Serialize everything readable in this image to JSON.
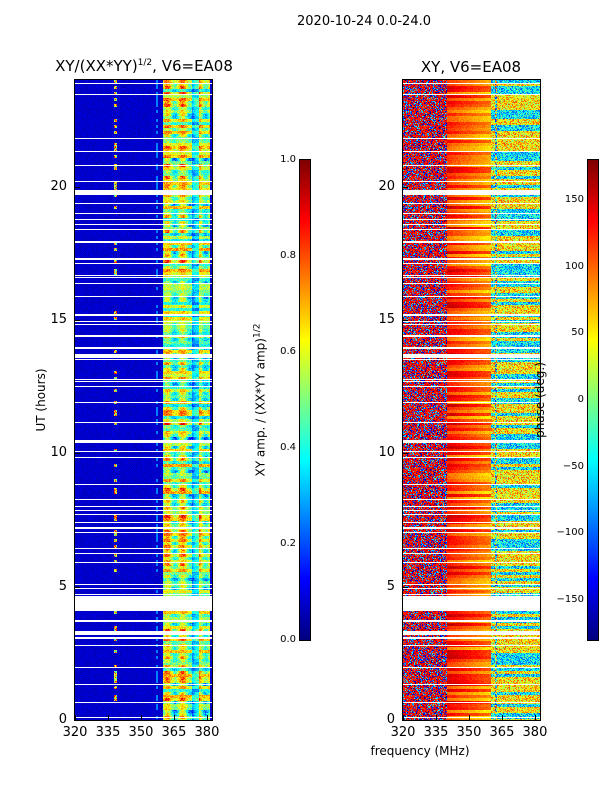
{
  "suptitle": "2020-10-24 0.0-24.0",
  "chart_data": [
    {
      "type": "heatmap",
      "title_main": "XY/(XX*YY)",
      "title_sup": "1/2",
      "title_tail": ", V6=EA08",
      "xlabel": "frequency (MHz)",
      "ylabel": "UT (hours)",
      "xlim": [
        320,
        382.3
      ],
      "ylim": [
        0,
        24
      ],
      "xticks": [
        "320",
        "335",
        "350",
        "365",
        "380"
      ],
      "xtick_values": [
        320,
        335,
        350,
        365,
        380
      ],
      "yticks": [
        "0",
        "5",
        "10",
        "15",
        "20"
      ],
      "ytick_values": [
        0,
        5,
        10,
        15,
        20
      ],
      "colormap": "jet",
      "flagged_hours": [
        [
          3.2,
          3.35
        ],
        [
          4.1,
          4.65
        ],
        [
          10.42,
          10.52
        ],
        [
          13.58,
          13.75
        ],
        [
          19.7,
          19.9
        ]
      ],
      "colorbar": {
        "label_main": "XY amp. / (XX*YY amp)",
        "label_sup": "1/2",
        "range": [
          0,
          1
        ],
        "ticks": [
          "0.0",
          "0.2",
          "0.4",
          "0.6",
          "0.8",
          "1.0"
        ],
        "tick_values": [
          0,
          0.2,
          0.4,
          0.6,
          0.8,
          1.0
        ]
      }
    },
    {
      "type": "heatmap",
      "title": "XY, V6=EA08",
      "xlim": [
        320,
        382.3
      ],
      "ylim": [
        0,
        24
      ],
      "xticks": [
        "320",
        "335",
        "350",
        "365",
        "380"
      ],
      "xtick_values": [
        320,
        335,
        350,
        365,
        380
      ],
      "yticks": [
        "0",
        "5",
        "10",
        "15",
        "20"
      ],
      "ytick_values": [
        0,
        5,
        10,
        15,
        20
      ],
      "colormap": "jet",
      "flagged_hours": [
        [
          3.2,
          3.35
        ],
        [
          4.1,
          4.65
        ],
        [
          10.42,
          10.52
        ],
        [
          13.58,
          13.75
        ],
        [
          19.7,
          19.9
        ]
      ],
      "colorbar": {
        "label": "phase (deg.)",
        "range": [
          -180,
          180
        ],
        "ticks": [
          "−150",
          "−100",
          "−50",
          "0",
          "50",
          "100",
          "150"
        ],
        "tick_values": [
          -150,
          -100,
          -50,
          0,
          50,
          100,
          150
        ]
      }
    }
  ]
}
